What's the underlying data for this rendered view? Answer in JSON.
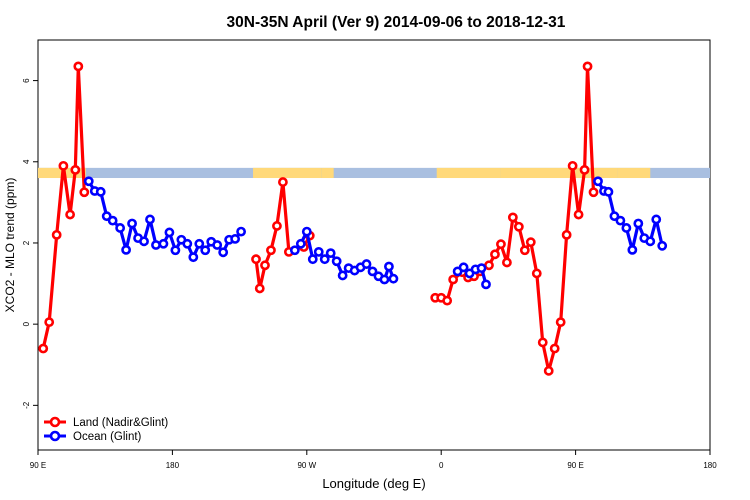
{
  "chart_data": {
    "type": "line",
    "title": "30N-35N April (Ver 9)   2014-09-06 to 2018-12-31",
    "xlabel": "Longitude (deg E)",
    "ylabel": "XCO2 - MLO trend (ppm)",
    "xlim": [
      90,
      540
    ],
    "ylim": [
      -3.1,
      7
    ],
    "x_ticks": [
      {
        "value": 90,
        "label": "90 E"
      },
      {
        "value": 180,
        "label": "180"
      },
      {
        "value": 270,
        "label": "90 W"
      },
      {
        "value": 360,
        "label": "0"
      },
      {
        "value": 450,
        "label": "90 E"
      },
      {
        "value": 540,
        "label": "180"
      }
    ],
    "y_ticks": [
      {
        "value": -2,
        "label": "-2"
      },
      {
        "value": 0,
        "label": "0"
      },
      {
        "value": 2,
        "label": "2"
      },
      {
        "value": 4,
        "label": "4"
      },
      {
        "value": 6,
        "label": "6"
      }
    ],
    "grid": false,
    "legend_position": "bottom-left",
    "land_sea_band": {
      "y_range": [
        3.6,
        3.85
      ],
      "land_color": "#FFD97A",
      "ocean_color": "#A9BFE0",
      "land_segments": [
        [
          90,
          122
        ],
        [
          234,
          280
        ],
        [
          280,
          288
        ],
        [
          357,
          400
        ],
        [
          400,
          450
        ],
        [
          450,
          478
        ],
        [
          478,
          500
        ]
      ]
    },
    "series": [
      {
        "name": "Land (Nadir&Glint)",
        "color": "#FF0000",
        "segments": [
          [
            [
              93.5,
              -0.6
            ],
            [
              97.5,
              0.05
            ],
            [
              102.5,
              2.2
            ],
            [
              107,
              3.9
            ],
            [
              111.5,
              2.7
            ],
            [
              115,
              3.8
            ],
            [
              117,
              6.35
            ],
            [
              121,
              3.25
            ]
          ],
          [
            [
              236,
              1.6
            ],
            [
              238.5,
              0.88
            ],
            [
              242,
              1.45
            ],
            [
              246,
              1.82
            ],
            [
              250,
              2.42
            ],
            [
              254,
              3.5
            ],
            [
              258,
              1.78
            ]
          ],
          [
            [
              268,
              1.9
            ],
            [
              272,
              2.18
            ]
          ],
          [
            [
              356,
              0.65
            ],
            [
              360,
              0.65
            ],
            [
              364,
              0.58
            ],
            [
              368,
              1.1
            ],
            [
              374,
              1.28
            ],
            [
              378,
              1.15
            ],
            [
              382,
              1.18
            ],
            [
              386,
              1.3
            ],
            [
              392,
              1.45
            ],
            [
              396,
              1.72
            ],
            [
              400,
              1.97
            ],
            [
              404,
              1.52
            ],
            [
              408,
              2.63
            ],
            [
              412,
              2.4
            ],
            [
              416,
              1.82
            ],
            [
              420,
              2.02
            ],
            [
              424,
              1.25
            ],
            [
              428,
              -0.45
            ],
            [
              432,
              -1.15
            ],
            [
              436,
              -0.6
            ],
            [
              440,
              0.05
            ],
            [
              444,
              2.2
            ],
            [
              448,
              3.9
            ],
            [
              452,
              2.7
            ],
            [
              456,
              3.8
            ],
            [
              458,
              6.35
            ],
            [
              462,
              3.25
            ]
          ]
        ]
      },
      {
        "name": "Ocean (Glint)",
        "color": "#0000FF",
        "segments": [
          [
            [
              124,
              3.52
            ],
            [
              128,
              3.28
            ],
            [
              132,
              3.26
            ],
            [
              136,
              2.66
            ],
            [
              140,
              2.55
            ],
            [
              145,
              2.37
            ],
            [
              149,
              1.83
            ],
            [
              153,
              2.48
            ],
            [
              157,
              2.12
            ],
            [
              161,
              2.04
            ],
            [
              165,
              2.58
            ],
            [
              169,
              1.95
            ],
            [
              174,
              1.98
            ],
            [
              178,
              2.26
            ],
            [
              182,
              1.82
            ],
            [
              186,
              2.08
            ],
            [
              190,
              1.98
            ],
            [
              194,
              1.65
            ],
            [
              198,
              1.98
            ],
            [
              202,
              1.82
            ],
            [
              206,
              2.03
            ],
            [
              210,
              1.95
            ],
            [
              214,
              1.77
            ],
            [
              218,
              2.08
            ],
            [
              222,
              2.1
            ],
            [
              226,
              2.28
            ]
          ],
          [
            [
              262,
              1.82
            ],
            [
              266,
              1.98
            ],
            [
              270,
              2.28
            ],
            [
              274,
              1.6
            ],
            [
              278,
              1.78
            ],
            [
              282,
              1.6
            ],
            [
              286,
              1.75
            ],
            [
              290,
              1.55
            ],
            [
              294,
              1.2
            ],
            [
              298,
              1.38
            ],
            [
              302,
              1.32
            ],
            [
              306,
              1.4
            ],
            [
              310,
              1.48
            ],
            [
              314,
              1.3
            ],
            [
              318,
              1.18
            ],
            [
              322,
              1.1
            ],
            [
              325,
              1.42
            ],
            [
              328,
              1.12
            ]
          ],
          [
            [
              371,
              1.3
            ],
            [
              375,
              1.4
            ],
            [
              379,
              1.25
            ],
            [
              383,
              1.35
            ],
            [
              387,
              1.38
            ],
            [
              390,
              0.98
            ]
          ],
          [
            [
              465,
              3.52
            ],
            [
              469,
              3.28
            ],
            [
              472,
              3.26
            ],
            [
              476,
              2.66
            ],
            [
              480,
              2.55
            ],
            [
              484,
              2.37
            ],
            [
              488,
              1.83
            ],
            [
              492,
              2.48
            ],
            [
              496,
              2.12
            ],
            [
              500,
              2.04
            ],
            [
              504,
              2.58
            ],
            [
              508,
              1.93
            ]
          ]
        ]
      }
    ]
  }
}
